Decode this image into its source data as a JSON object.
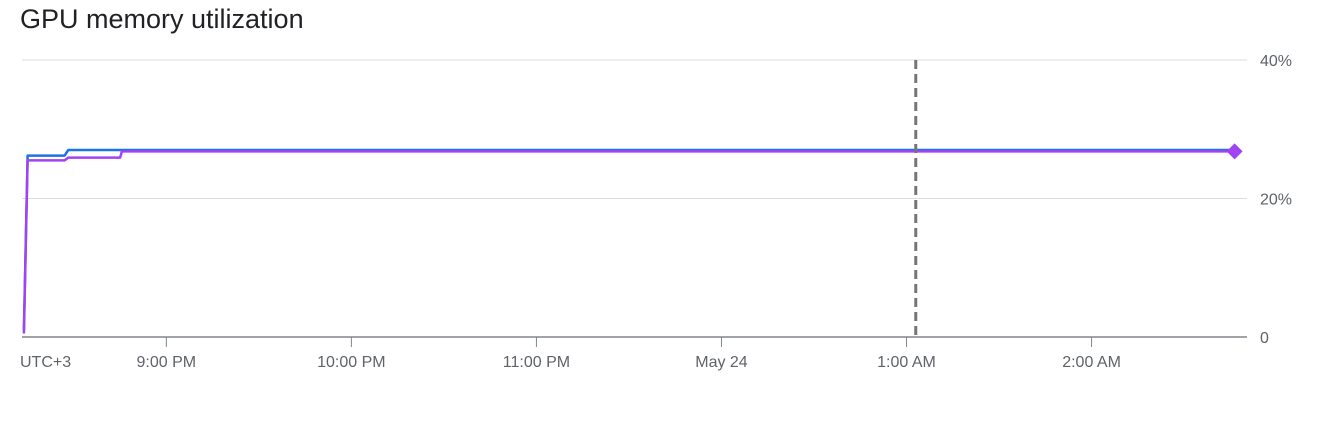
{
  "chart_data": {
    "type": "line",
    "title": "GPU memory utilization",
    "timezone_label": "UTC+3",
    "x_ticks": [
      {
        "label": "9:00 PM",
        "t": 0.0
      },
      {
        "label": "10:00 PM",
        "t": 1.0
      },
      {
        "label": "11:00 PM",
        "t": 2.0
      },
      {
        "label": "May 24",
        "t": 3.0
      },
      {
        "label": "1:00 AM",
        "t": 4.0
      },
      {
        "label": "2:00 AM",
        "t": 5.0
      }
    ],
    "xlim": [
      -0.78,
      5.84
    ],
    "ylim": [
      0,
      40
    ],
    "y_ticks": [
      {
        "label": "0",
        "v": 0
      },
      {
        "label": "20%",
        "v": 20
      },
      {
        "label": "40%",
        "v": 40
      }
    ],
    "y_axis_side": "right",
    "grid": true,
    "cursor_t": 4.05,
    "series": [
      {
        "color": "#1a73e8",
        "points": [
          [
            -0.77,
            1
          ],
          [
            -0.75,
            26.2
          ],
          [
            -0.55,
            26.2
          ],
          [
            -0.53,
            27.0
          ],
          [
            5.8,
            27.0
          ]
        ]
      },
      {
        "color": "#a142f4",
        "points": [
          [
            -0.77,
            0.5
          ],
          [
            -0.75,
            25.5
          ],
          [
            -0.55,
            25.5
          ],
          [
            -0.53,
            25.9
          ],
          [
            -0.25,
            25.9
          ],
          [
            -0.24,
            26.8
          ],
          [
            5.8,
            26.8
          ]
        ],
        "end_marker": "diamond"
      }
    ]
  }
}
